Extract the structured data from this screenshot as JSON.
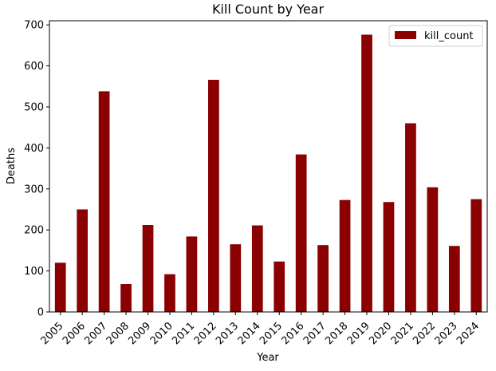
{
  "chart_data": {
    "type": "bar",
    "title": "Kill Count by Year",
    "xlabel": "Year",
    "ylabel": "Deaths",
    "categories": [
      "2005",
      "2006",
      "2007",
      "2008",
      "2009",
      "2010",
      "2011",
      "2012",
      "2013",
      "2014",
      "2015",
      "2016",
      "2017",
      "2018",
      "2019",
      "2020",
      "2021",
      "2022",
      "2023",
      "2024"
    ],
    "series": [
      {
        "name": "kill_count",
        "color": "#8b0000",
        "values": [
          120,
          250,
          538,
          68,
          212,
          92,
          184,
          566,
          165,
          211,
          123,
          384,
          163,
          273,
          676,
          268,
          460,
          304,
          161,
          275
        ]
      }
    ],
    "ylim": [
      0,
      710
    ],
    "yticks": [
      0,
      100,
      200,
      300,
      400,
      500,
      600,
      700
    ],
    "grid": false,
    "legend_position": "top-right"
  }
}
